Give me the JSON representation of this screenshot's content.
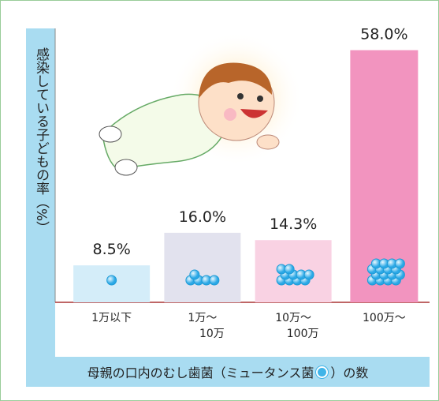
{
  "chart_data": {
    "type": "bar",
    "ylabel": "感染している子どもの率（%）",
    "xlabel_parts": [
      "母親の口内のむし歯菌（ミュータンス菌",
      "）の数"
    ],
    "categories": [
      "1万以下",
      "1万～\n10万",
      "10万～\n100万",
      "100万～"
    ],
    "values": [
      8.5,
      16.0,
      14.3,
      58.0
    ],
    "value_labels": [
      "8.5%",
      "16.0%",
      "14.3%",
      "58.0%"
    ],
    "colors": [
      "#d4edf9",
      "#e2e2ee",
      "#f9d2e3",
      "#f294bf"
    ],
    "ylim": [
      0,
      63
    ]
  }
}
